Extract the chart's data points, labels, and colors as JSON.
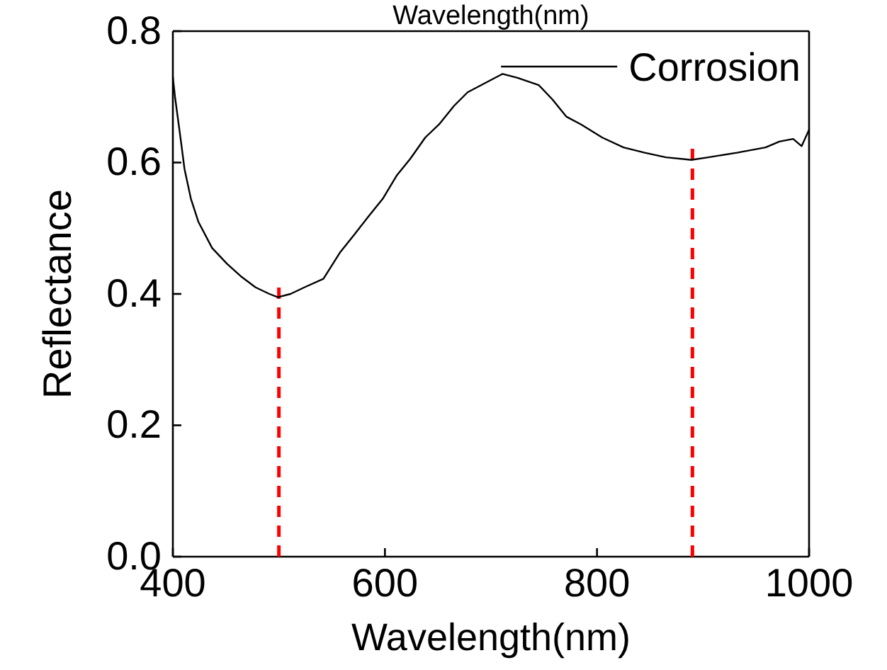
{
  "chart_data": {
    "type": "line",
    "xlabel": "Wavelength(nm)",
    "ylabel": "Reflectance",
    "annotations": [
      "Wavelength(nm)"
    ],
    "xlim": [
      400,
      1000
    ],
    "xticks": [
      400,
      600,
      800,
      1000
    ],
    "ylim": [
      0,
      0.8
    ],
    "yticks": [
      {
        "value": 0,
        "label": "0.0"
      },
      0.2,
      0.4,
      0.6,
      0.8
    ],
    "legend": "top right",
    "grid": false,
    "line_style": "solid",
    "marker": "none",
    "series": [
      {
        "name": "Corrosion",
        "color": "#000000",
        "x": [
          400,
          402,
          407,
          411,
          417,
          424,
          437,
          451,
          464,
          478,
          491,
          499,
          511,
          524,
          542,
          558,
          571,
          584,
          598,
          611,
          624,
          638,
          651,
          665,
          678,
          691,
          711,
          725,
          745,
          758,
          771,
          785,
          805,
          825,
          845,
          865,
          889,
          905,
          932,
          959,
          972,
          985,
          993,
          1000
        ],
        "values": [
          0.73,
          0.7,
          0.64,
          0.59,
          0.545,
          0.51,
          0.47,
          0.446,
          0.427,
          0.41,
          0.4,
          0.395,
          0.4,
          0.41,
          0.423,
          0.464,
          0.49,
          0.517,
          0.545,
          0.58,
          0.606,
          0.638,
          0.658,
          0.686,
          0.707,
          0.718,
          0.735,
          0.729,
          0.718,
          0.696,
          0.67,
          0.658,
          0.638,
          0.623,
          0.615,
          0.608,
          0.604,
          0.608,
          0.615,
          0.623,
          0.632,
          0.636,
          0.625,
          0.65
        ]
      }
    ],
    "ref_lines": [
      {
        "axis": "x",
        "value": 500,
        "color": "#ff0000",
        "line_style": "dashed"
      },
      {
        "axis": "x",
        "value": 890,
        "color": "#ff0000",
        "line_style": "dashed"
      }
    ]
  }
}
